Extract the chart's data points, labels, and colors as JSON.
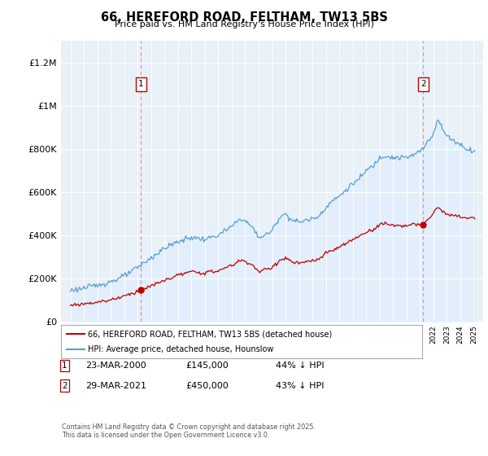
{
  "title": "66, HEREFORD ROAD, FELTHAM, TW13 5BS",
  "subtitle": "Price paid vs. HM Land Registry's House Price Index (HPI)",
  "ylim": [
    0,
    1300000
  ],
  "yticks": [
    0,
    200000,
    400000,
    600000,
    800000,
    1000000,
    1200000
  ],
  "ytick_labels": [
    "£0",
    "£200K",
    "£400K",
    "£600K",
    "£800K",
    "£1M",
    "£1.2M"
  ],
  "sale1_date": "23-MAR-2000",
  "sale1_price": 145000,
  "sale1_hpi_pct": "44% ↓ HPI",
  "sale2_date": "29-MAR-2021",
  "sale2_price": 450000,
  "sale2_hpi_pct": "43% ↓ HPI",
  "hpi_line_color": "#5b9bd5",
  "hpi_fill_color": "#ddeeff",
  "price_line_color": "#c00000",
  "sale_marker_color": "#c00000",
  "vline_color": "#ff8888",
  "legend_house_label": "66, HEREFORD ROAD, FELTHAM, TW13 5BS (detached house)",
  "legend_hpi_label": "HPI: Average price, detached house, Hounslow",
  "footnote": "Contains HM Land Registry data © Crown copyright and database right 2025.\nThis data is licensed under the Open Government Licence v3.0.",
  "background_color": "#ffffff",
  "plot_bg_color": "#e8f0f8",
  "grid_color": "#ffffff"
}
